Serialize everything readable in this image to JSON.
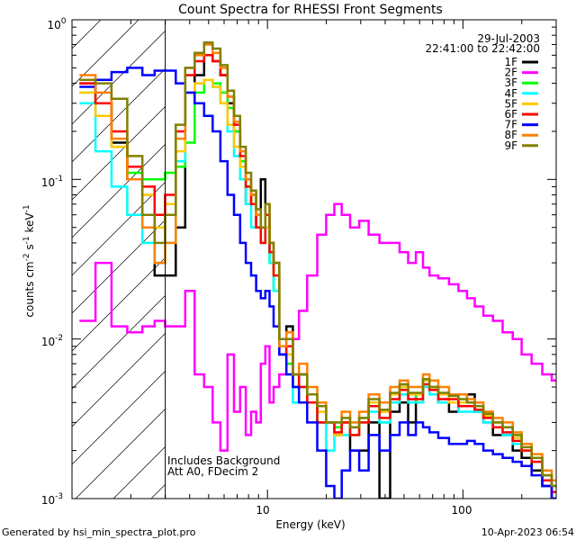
{
  "chart_data": {
    "type": "line",
    "title": "Count Spectra for RHESSI Front Segments",
    "xlabel": "Energy (keV)",
    "ylabel_parts": {
      "base": "counts cm",
      "exp1": "-2",
      "mid1": " s",
      "exp2": "-1",
      "mid2": " keV",
      "exp3": "-1"
    },
    "x_scale": "log",
    "y_scale": "log",
    "xlim": [
      1,
      300
    ],
    "ylim": [
      0.001,
      1
    ],
    "x_tick_labels": [
      "10",
      "100"
    ],
    "y_tick_labels": [
      {
        "base": "10",
        "exp": "0"
      },
      {
        "base": "10",
        "exp": "-1"
      },
      {
        "base": "10",
        "exp": "-2"
      },
      {
        "base": "10",
        "exp": "-3"
      }
    ],
    "date": "29-Jul-2003",
    "time_range": "22:41:00 to 22:42:00",
    "annotations": [
      "Includes Background",
      "Att A0, FDecim 2"
    ],
    "footer_left": "Generated by hsi_min_spectra_plot.pro",
    "footer_right": "10-Apr-2023 06:54",
    "hatched_below_keV": 3,
    "series": [
      {
        "name": "1F",
        "color": "#000000",
        "x": [
          1.2,
          1.45,
          1.75,
          2.1,
          2.5,
          2.8,
          3.2,
          3.6,
          4,
          4.5,
          5,
          5.5,
          6,
          6.5,
          7,
          7.5,
          8,
          8.5,
          9,
          9.5,
          10,
          10.5,
          11,
          12,
          13,
          14,
          15,
          17,
          19,
          21,
          23,
          25,
          28,
          31,
          35,
          40,
          45,
          50,
          55,
          60,
          65,
          70,
          80,
          90,
          100,
          110,
          120,
          135,
          150,
          170,
          190,
          210,
          240,
          270,
          300
        ],
        "y": [
          0.4,
          0.3,
          0.17,
          0.1,
          0.06,
          0.025,
          0.025,
          0.05,
          0.35,
          0.45,
          0.6,
          0.55,
          0.45,
          0.3,
          0.2,
          0.12,
          0.07,
          0.08,
          0.05,
          0.1,
          0.06,
          0.035,
          0.03,
          0.008,
          0.012,
          0.005,
          0.006,
          0.004,
          0.003,
          0.003,
          0.0025,
          0.003,
          0.002,
          0.002,
          0.003,
          0.001,
          0.0035,
          0.004,
          0.003,
          0.0045,
          0.0055,
          0.005,
          0.004,
          0.0035,
          0.004,
          0.0045,
          0.0035,
          0.003,
          0.0025,
          0.0025,
          0.002,
          0.0018,
          0.0015,
          0.0012,
          0.001
        ]
      },
      {
        "name": "2F",
        "color": "#ff00ff",
        "x": [
          1.2,
          1.45,
          1.75,
          2.1,
          2.5,
          2.8,
          3.2,
          3.6,
          4,
          4.5,
          5,
          5.5,
          6,
          6.5,
          7,
          7.5,
          8,
          8.5,
          9,
          9.5,
          10,
          10.5,
          11,
          12,
          13,
          14,
          15,
          17,
          19,
          21,
          23,
          25,
          28,
          31,
          35,
          40,
          45,
          50,
          55,
          60,
          65,
          70,
          80,
          90,
          100,
          110,
          120,
          135,
          150,
          170,
          190,
          210,
          240,
          270,
          300
        ],
        "y": [
          0.013,
          0.03,
          0.012,
          0.011,
          0.012,
          0.013,
          0.012,
          0.012,
          0.02,
          0.006,
          0.005,
          0.003,
          0.002,
          0.008,
          0.0035,
          0.005,
          0.0025,
          0.0035,
          0.003,
          0.007,
          0.009,
          0.004,
          0.005,
          0.006,
          0.007,
          0.01,
          0.015,
          0.025,
          0.045,
          0.06,
          0.07,
          0.06,
          0.05,
          0.055,
          0.045,
          0.04,
          0.04,
          0.035,
          0.03,
          0.035,
          0.028,
          0.025,
          0.024,
          0.022,
          0.02,
          0.018,
          0.016,
          0.014,
          0.013,
          0.011,
          0.01,
          0.008,
          0.007,
          0.006,
          0.0055
        ]
      },
      {
        "name": "3F",
        "color": "#00ff00",
        "x": [
          1.2,
          1.45,
          1.75,
          2.1,
          2.5,
          2.8,
          3.2,
          3.6,
          4,
          4.5,
          5,
          5.5,
          6,
          6.5,
          7,
          7.5,
          8,
          8.5,
          9,
          9.5,
          10,
          10.5,
          11,
          12,
          13,
          14,
          15,
          17,
          19,
          21,
          23,
          25,
          28,
          31,
          35,
          40,
          45,
          50,
          55,
          60,
          65,
          70,
          80,
          90,
          100,
          110,
          120,
          135,
          150,
          170,
          190,
          210,
          240,
          270,
          300
        ],
        "y": [
          0.35,
          0.3,
          0.16,
          0.11,
          0.1,
          0.1,
          0.11,
          0.12,
          0.17,
          0.35,
          0.42,
          0.4,
          0.35,
          0.28,
          0.2,
          0.13,
          0.09,
          0.07,
          0.05,
          0.04,
          0.05,
          0.03,
          0.02,
          0.009,
          0.007,
          0.005,
          0.004,
          0.004,
          0.003,
          0.003,
          0.0028,
          0.003,
          0.0025,
          0.0032,
          0.004,
          0.003,
          0.004,
          0.005,
          0.0045,
          0.004,
          0.0055,
          0.005,
          0.0045,
          0.0045,
          0.004,
          0.004,
          0.0038,
          0.0035,
          0.003,
          0.0028,
          0.0025,
          0.002,
          0.0018,
          0.0014,
          0.0012
        ]
      },
      {
        "name": "4F",
        "color": "#00ffff",
        "x": [
          1.2,
          1.45,
          1.75,
          2.1,
          2.5,
          2.8,
          3.2,
          3.6,
          4,
          4.5,
          5,
          5.5,
          6,
          6.5,
          7,
          7.5,
          8,
          8.5,
          9,
          9.5,
          10,
          10.5,
          11,
          12,
          13,
          14,
          15,
          17,
          19,
          21,
          23,
          25,
          28,
          31,
          35,
          40,
          45,
          50,
          55,
          60,
          65,
          70,
          80,
          90,
          100,
          110,
          120,
          135,
          150,
          170,
          190,
          210,
          240,
          270,
          300
        ],
        "y": [
          0.3,
          0.15,
          0.09,
          0.06,
          0.04,
          0.03,
          0.04,
          0.13,
          0.35,
          0.4,
          0.42,
          0.38,
          0.3,
          0.2,
          0.14,
          0.1,
          0.07,
          0.05,
          0.05,
          0.04,
          0.05,
          0.03,
          0.02,
          0.01,
          0.006,
          0.004,
          0.005,
          0.004,
          0.003,
          0.002,
          0.003,
          0.0025,
          0.003,
          0.003,
          0.0035,
          0.003,
          0.004,
          0.0045,
          0.004,
          0.004,
          0.005,
          0.0045,
          0.004,
          0.004,
          0.0035,
          0.0035,
          0.0035,
          0.003,
          0.0028,
          0.0025,
          0.0022,
          0.002,
          0.0017,
          0.0013,
          0.0012
        ]
      },
      {
        "name": "5F",
        "color": "#ffc800",
        "x": [
          1.2,
          1.45,
          1.75,
          2.1,
          2.5,
          2.8,
          3.2,
          3.6,
          4,
          4.5,
          5,
          5.5,
          6,
          6.5,
          7,
          7.5,
          8,
          8.5,
          9,
          9.5,
          10,
          10.5,
          11,
          12,
          13,
          14,
          15,
          17,
          19,
          21,
          23,
          25,
          28,
          31,
          35,
          40,
          45,
          50,
          55,
          60,
          65,
          70,
          80,
          90,
          100,
          110,
          120,
          135,
          150,
          170,
          190,
          210,
          240,
          270,
          300
        ],
        "y": [
          0.35,
          0.25,
          0.16,
          0.12,
          0.08,
          0.05,
          0.07,
          0.15,
          0.35,
          0.4,
          0.42,
          0.38,
          0.3,
          0.22,
          0.16,
          0.12,
          0.09,
          0.07,
          0.06,
          0.05,
          0.05,
          0.04,
          0.025,
          0.01,
          0.008,
          0.006,
          0.005,
          0.004,
          0.0035,
          0.003,
          0.0025,
          0.003,
          0.0028,
          0.003,
          0.004,
          0.0035,
          0.0045,
          0.005,
          0.0045,
          0.0045,
          0.0055,
          0.005,
          0.0045,
          0.004,
          0.004,
          0.004,
          0.0038,
          0.0033,
          0.003,
          0.0028,
          0.0024,
          0.002,
          0.0018,
          0.0014,
          0.0012
        ]
      },
      {
        "name": "6F",
        "color": "#ff0000",
        "x": [
          1.2,
          1.45,
          1.75,
          2.1,
          2.5,
          2.8,
          3.2,
          3.6,
          4,
          4.5,
          5,
          5.5,
          6,
          6.5,
          7,
          7.5,
          8,
          8.5,
          9,
          9.5,
          10,
          10.5,
          11,
          12,
          13,
          14,
          15,
          17,
          19,
          21,
          23,
          25,
          28,
          31,
          35,
          40,
          45,
          50,
          55,
          60,
          65,
          70,
          80,
          90,
          100,
          110,
          120,
          135,
          150,
          170,
          190,
          210,
          240,
          270,
          300
        ],
        "y": [
          0.4,
          0.3,
          0.2,
          0.12,
          0.09,
          0.06,
          0.08,
          0.2,
          0.45,
          0.55,
          0.6,
          0.55,
          0.45,
          0.33,
          0.22,
          0.14,
          0.09,
          0.07,
          0.05,
          0.04,
          0.06,
          0.035,
          0.025,
          0.008,
          0.009,
          0.006,
          0.005,
          0.004,
          0.003,
          0.003,
          0.0026,
          0.003,
          0.0025,
          0.003,
          0.0038,
          0.0032,
          0.0042,
          0.0048,
          0.0042,
          0.0042,
          0.0052,
          0.0048,
          0.0042,
          0.0042,
          0.0038,
          0.0038,
          0.0036,
          0.0032,
          0.0028,
          0.0026,
          0.0023,
          0.002,
          0.0017,
          0.0013,
          0.0011
        ]
      },
      {
        "name": "7F",
        "color": "#0000ff",
        "x": [
          1.2,
          1.45,
          1.75,
          2.1,
          2.5,
          2.8,
          3.2,
          3.6,
          4,
          4.5,
          5,
          5.5,
          6,
          6.5,
          7,
          7.5,
          8,
          8.5,
          9,
          9.5,
          10,
          10.5,
          11,
          12,
          13,
          14,
          15,
          17,
          19,
          21,
          23,
          25,
          28,
          31,
          35,
          40,
          45,
          50,
          55,
          60,
          65,
          70,
          80,
          90,
          100,
          110,
          120,
          135,
          150,
          170,
          190,
          210,
          240,
          270,
          300
        ],
        "y": [
          0.38,
          0.42,
          0.47,
          0.5,
          0.45,
          0.48,
          0.48,
          0.4,
          0.35,
          0.3,
          0.25,
          0.2,
          0.13,
          0.08,
          0.06,
          0.04,
          0.03,
          0.025,
          0.02,
          0.018,
          0.02,
          0.016,
          0.012,
          0.008,
          0.006,
          0.005,
          0.004,
          0.003,
          0.002,
          0.0012,
          0.001,
          0.0015,
          0.002,
          0.0015,
          0.0025,
          0.002,
          0.0025,
          0.003,
          0.0025,
          0.003,
          0.0028,
          0.0026,
          0.0024,
          0.0022,
          0.0022,
          0.0023,
          0.0022,
          0.002,
          0.0019,
          0.0018,
          0.0017,
          0.0016,
          0.0014,
          0.0012,
          0.001
        ]
      },
      {
        "name": "8F",
        "color": "#ff8000",
        "x": [
          1.2,
          1.45,
          1.75,
          2.1,
          2.5,
          2.8,
          3.2,
          3.6,
          4,
          4.5,
          5,
          5.5,
          6,
          6.5,
          7,
          7.5,
          8,
          8.5,
          9,
          9.5,
          10,
          10.5,
          11,
          12,
          13,
          14,
          15,
          17,
          19,
          21,
          23,
          25,
          28,
          31,
          35,
          40,
          45,
          50,
          55,
          60,
          65,
          70,
          80,
          90,
          100,
          110,
          120,
          135,
          150,
          170,
          190,
          210,
          240,
          270,
          300
        ],
        "y": [
          0.45,
          0.35,
          0.18,
          0.1,
          0.05,
          0.03,
          0.04,
          0.18,
          0.5,
          0.6,
          0.7,
          0.62,
          0.5,
          0.33,
          0.23,
          0.15,
          0.1,
          0.08,
          0.06,
          0.05,
          0.07,
          0.04,
          0.03,
          0.009,
          0.011,
          0.006,
          0.007,
          0.005,
          0.004,
          0.003,
          0.003,
          0.0035,
          0.003,
          0.0035,
          0.0045,
          0.004,
          0.005,
          0.0055,
          0.005,
          0.005,
          0.006,
          0.0055,
          0.005,
          0.0045,
          0.0045,
          0.0042,
          0.004,
          0.0035,
          0.0032,
          0.003,
          0.0026,
          0.0022,
          0.0019,
          0.0015,
          0.0013
        ]
      },
      {
        "name": "9F",
        "color": "#808000",
        "x": [
          1.2,
          1.45,
          1.75,
          2.1,
          2.5,
          2.8,
          3.2,
          3.6,
          4,
          4.5,
          5,
          5.5,
          6,
          6.5,
          7,
          7.5,
          8,
          8.5,
          9,
          9.5,
          10,
          10.5,
          11,
          12,
          13,
          14,
          15,
          17,
          19,
          21,
          23,
          25,
          28,
          31,
          35,
          40,
          45,
          50,
          55,
          60,
          65,
          70,
          80,
          90,
          100,
          110,
          120,
          135,
          150,
          170,
          190,
          210,
          240,
          270,
          300
        ],
        "y": [
          0.42,
          0.4,
          0.32,
          0.14,
          0.06,
          0.04,
          0.06,
          0.22,
          0.5,
          0.62,
          0.72,
          0.66,
          0.52,
          0.36,
          0.25,
          0.16,
          0.11,
          0.085,
          0.065,
          0.05,
          0.07,
          0.04,
          0.03,
          0.01,
          0.01,
          0.006,
          0.006,
          0.0045,
          0.0038,
          0.003,
          0.003,
          0.0032,
          0.0028,
          0.0032,
          0.0042,
          0.0036,
          0.0046,
          0.0052,
          0.0046,
          0.0046,
          0.0056,
          0.005,
          0.0046,
          0.0044,
          0.0042,
          0.004,
          0.0038,
          0.0034,
          0.003,
          0.0028,
          0.0025,
          0.0021,
          0.0018,
          0.0014,
          0.0012
        ]
      }
    ]
  }
}
